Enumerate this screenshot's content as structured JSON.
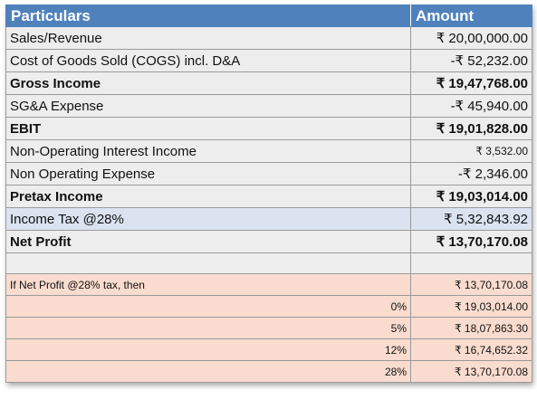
{
  "header": {
    "particulars": "Particulars",
    "amount": "Amount"
  },
  "rows": [
    {
      "label": "Sales/Revenue",
      "amount": "₹ 20,00,000.00"
    },
    {
      "label": "Cost of Goods Sold (COGS) incl. D&A",
      "amount": "-₹ 52,232.00"
    },
    {
      "label": "Gross Income",
      "amount": "₹ 19,47,768.00"
    },
    {
      "label": "SG&A Expense",
      "amount": "-₹ 45,940.00"
    },
    {
      "label": "EBIT",
      "amount": "₹ 19,01,828.00"
    },
    {
      "label": "Non-Operating Interest Income",
      "amount": "₹ 3,532.00"
    },
    {
      "label": "Non Operating Expense",
      "amount": "-₹ 2,346.00"
    },
    {
      "label": "Pretax Income",
      "amount": "₹ 19,03,014.00"
    },
    {
      "label": "Income Tax @28%",
      "amount": "₹ 5,32,843.92"
    },
    {
      "label": "Net Profit",
      "amount": "₹ 13,70,170.08"
    }
  ],
  "scenario": {
    "label": "If Net Profit @28% tax, then",
    "amount": "₹ 13,70,170.08",
    "rows": [
      {
        "rate": "0%",
        "amount": "₹ 19,03,014.00"
      },
      {
        "rate": "5%",
        "amount": "₹ 18,07,863.30"
      },
      {
        "rate": "12%",
        "amount": "₹ 16,74,652.32"
      },
      {
        "rate": "28%",
        "amount": "₹ 13,70,170.08"
      }
    ]
  },
  "colors": {
    "header_bg": "#4f81bd",
    "row_bg": "#ededed",
    "tax_row_bg": "#dbe3f1",
    "scenario_bg": "#f9dccf"
  }
}
